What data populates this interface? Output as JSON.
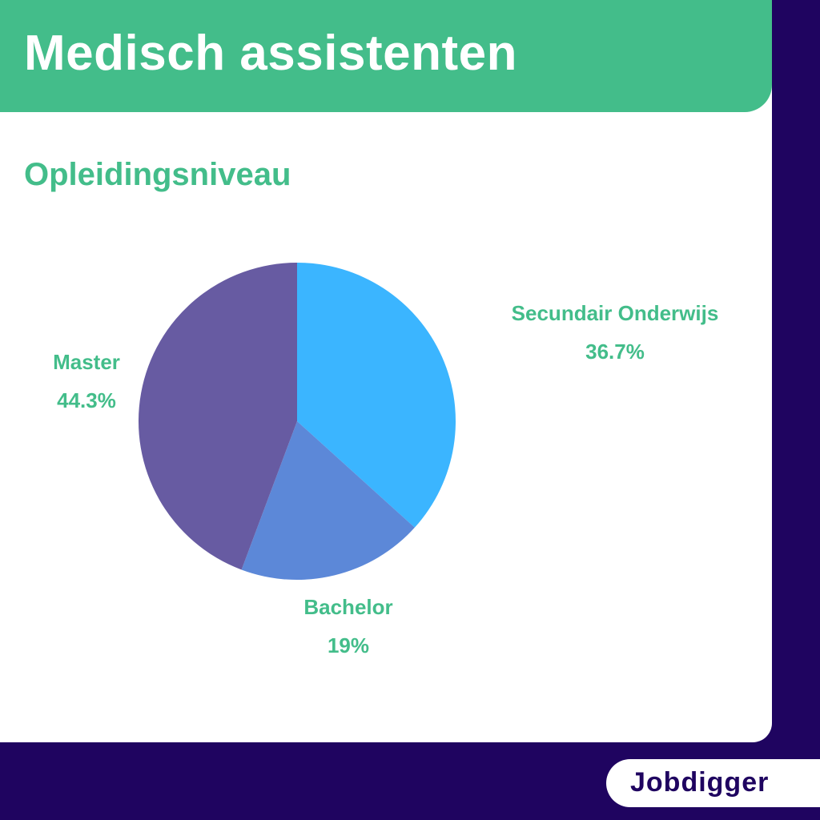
{
  "header": {
    "title": "Medisch assistenten"
  },
  "brand": {
    "logo_text": "Jobdigger"
  },
  "colors": {
    "accent_green": "#43bd8a",
    "background_navy": "#1f0460"
  },
  "chart_data": {
    "type": "pie",
    "title": "Opleidingsniveau",
    "slices": [
      {
        "label": "Secundair Onderwijs",
        "value": 36.7,
        "value_text": "36.7%",
        "color": "#3bb5ff"
      },
      {
        "label": "Bachelor",
        "value": 19,
        "value_text": "19%",
        "color": "#5c88d8"
      },
      {
        "label": "Master",
        "value": 44.3,
        "value_text": "44.3%",
        "color": "#675ba2"
      }
    ]
  }
}
